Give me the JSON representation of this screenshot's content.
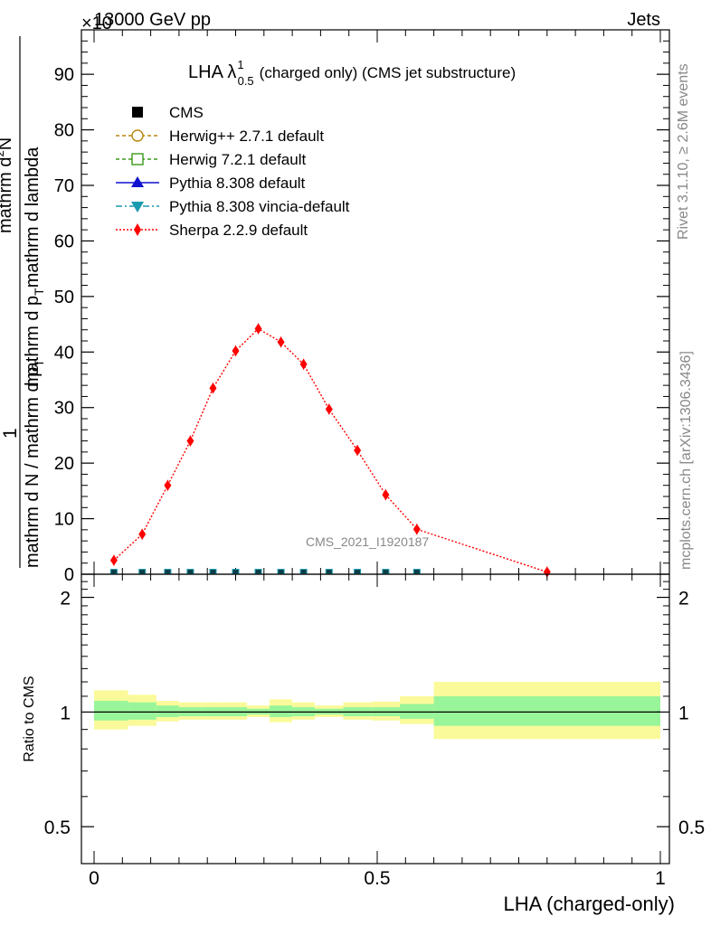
{
  "header": {
    "collision": "13000 GeV pp",
    "category": "Jets",
    "exponent_label": "×10"
  },
  "side": {
    "rivet": "Rivet 3.1.10, ≥ 2.6M events",
    "mcplots": "mcplots.cern.ch [arXiv:1306.3436]"
  },
  "watermark": "CMS_2021_I1920187",
  "ylabel_top": {
    "num": "1",
    "den": "mathrm d N / mathrm d p",
    "den_sub": "T",
    "num2": "mathrm d",
    "num2_sup": "2",
    "num2_N": "N",
    "rest": "mathrm d p",
    "rest_sub": "T",
    "rest2": "mathrm d lambda"
  },
  "ylabel_ratio": "Ratio to CMS",
  "xlabel": "LHA (charged-only)",
  "colors": {
    "cms": "#000000",
    "herwigpp": "#b8860b",
    "herwig7": "#3a9a1a",
    "pythia": "#1010d0",
    "vincia": "#1a9ab0",
    "sherpa": "#ff0000",
    "band_inner": "#99f599",
    "band_outer": "#fafa9a"
  },
  "chart_data": [
    {
      "type": "scatter",
      "title": "LHA λ",
      "title_sup": "1",
      "title_sub": "0.5",
      "title_rest": "(charged only) (CMS jet substructure)",
      "xlim": [
        0,
        1
      ],
      "ylim": [
        0,
        98
      ],
      "y_scale_exponent": "-3",
      "yticks": [
        0,
        10,
        20,
        30,
        40,
        50,
        60,
        70,
        80,
        90
      ],
      "xticks": [
        0,
        0.5,
        1
      ],
      "legend_position": "top-left",
      "legend": [
        {
          "label": "CMS",
          "style": "square-filled",
          "color_key": "cms"
        },
        {
          "label": "Herwig++ 2.7.1 default",
          "style": "circle-open-dashed",
          "color_key": "herwigpp"
        },
        {
          "label": "Herwig 7.2.1 default",
          "style": "square-open-dashed",
          "color_key": "herwig7"
        },
        {
          "label": "Pythia 8.308 default",
          "style": "triangle-solid",
          "color_key": "pythia"
        },
        {
          "label": "Pythia 8.308 vincia-default",
          "style": "triangle-down-dashdot",
          "color_key": "vincia"
        },
        {
          "label": "Sherpa 2.2.9 default",
          "style": "diamond-dotted",
          "color_key": "sherpa"
        }
      ],
      "series": [
        {
          "name": "Sherpa 2.2.9 default",
          "x": [
            0.035,
            0.085,
            0.13,
            0.17,
            0.21,
            0.25,
            0.29,
            0.33,
            0.37,
            0.415,
            0.465,
            0.515,
            0.57,
            0.8
          ],
          "y": [
            2.5,
            7.2,
            16.0,
            24.0,
            33.5,
            40.2,
            44.2,
            41.8,
            37.8,
            29.7,
            22.3,
            14.3,
            8.1,
            0.4
          ]
        },
        {
          "name": "CMS",
          "x": [
            0.035,
            0.085,
            0.13,
            0.17,
            0.21,
            0.25,
            0.29,
            0.33,
            0.37,
            0.415,
            0.465,
            0.515,
            0.57
          ],
          "y": [
            0.15,
            0.15,
            0.15,
            0.15,
            0.15,
            0.15,
            0.15,
            0.15,
            0.15,
            0.15,
            0.15,
            0.15,
            0.15
          ]
        }
      ]
    },
    {
      "type": "area",
      "ylabel": "Ratio to CMS",
      "xlabel": "LHA (charged-only)",
      "xlim": [
        0,
        1
      ],
      "yticks": [
        0.5,
        1,
        2
      ],
      "xticks": [
        0,
        0.5,
        1
      ],
      "bins": [
        {
          "lo": 0.0,
          "hi": 0.06,
          "inner": [
            0.95,
            1.07
          ],
          "outer": [
            0.9,
            1.14
          ]
        },
        {
          "lo": 0.06,
          "hi": 0.11,
          "inner": [
            0.955,
            1.06
          ],
          "outer": [
            0.92,
            1.11
          ]
        },
        {
          "lo": 0.11,
          "hi": 0.15,
          "inner": [
            0.97,
            1.04
          ],
          "outer": [
            0.945,
            1.07
          ]
        },
        {
          "lo": 0.15,
          "hi": 0.19,
          "inner": [
            0.975,
            1.03
          ],
          "outer": [
            0.955,
            1.06
          ]
        },
        {
          "lo": 0.19,
          "hi": 0.23,
          "inner": [
            0.975,
            1.03
          ],
          "outer": [
            0.955,
            1.06
          ]
        },
        {
          "lo": 0.23,
          "hi": 0.27,
          "inner": [
            0.975,
            1.03
          ],
          "outer": [
            0.955,
            1.06
          ]
        },
        {
          "lo": 0.27,
          "hi": 0.31,
          "inner": [
            0.985,
            1.02
          ],
          "outer": [
            0.97,
            1.04
          ]
        },
        {
          "lo": 0.31,
          "hi": 0.35,
          "inner": [
            0.97,
            1.04
          ],
          "outer": [
            0.94,
            1.08
          ]
        },
        {
          "lo": 0.35,
          "hi": 0.39,
          "inner": [
            0.975,
            1.03
          ],
          "outer": [
            0.955,
            1.06
          ]
        },
        {
          "lo": 0.39,
          "hi": 0.44,
          "inner": [
            0.985,
            1.02
          ],
          "outer": [
            0.97,
            1.04
          ]
        },
        {
          "lo": 0.44,
          "hi": 0.49,
          "inner": [
            0.975,
            1.03
          ],
          "outer": [
            0.955,
            1.06
          ]
        },
        {
          "lo": 0.49,
          "hi": 0.54,
          "inner": [
            0.975,
            1.03
          ],
          "outer": [
            0.95,
            1.065
          ]
        },
        {
          "lo": 0.54,
          "hi": 0.6,
          "inner": [
            0.96,
            1.05
          ],
          "outer": [
            0.93,
            1.1
          ]
        },
        {
          "lo": 0.6,
          "hi": 1.0,
          "inner": [
            0.92,
            1.1
          ],
          "outer": [
            0.85,
            1.2
          ]
        }
      ]
    }
  ]
}
